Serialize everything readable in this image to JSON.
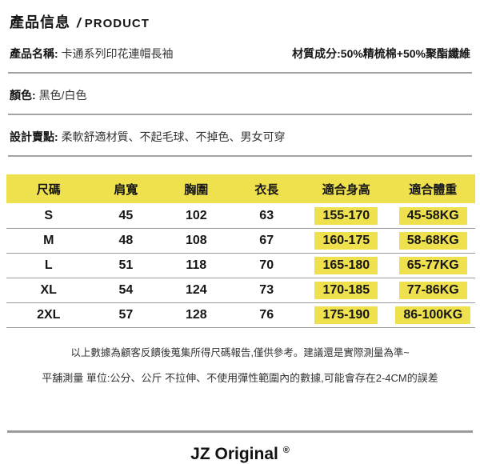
{
  "header": {
    "title_zh": "產品信息",
    "slash": "/",
    "title_en": "PRODUCT"
  },
  "info": {
    "name_label": "產品名稱:",
    "name_value": "卡通系列印花連帽長袖",
    "material_label": "材質成分:",
    "material_value": "50%精梳棉+50%聚酯纖維",
    "color_label": "顏色:",
    "color_value": "黑色/白色",
    "design_label": "設計賣點:",
    "design_value": "柔軟舒適材質、不起毛球、不掉色、男女可穿"
  },
  "size_table": {
    "columns": [
      "尺碼",
      "肩寬",
      "胸圍",
      "衣長",
      "適合身高",
      "適合體重"
    ],
    "rows": [
      [
        "S",
        "45",
        "102",
        "63",
        "155-170",
        "45-58KG"
      ],
      [
        "M",
        "48",
        "108",
        "67",
        "160-175",
        "58-68KG"
      ],
      [
        "L",
        "51",
        "118",
        "70",
        "165-180",
        "65-77KG"
      ],
      [
        "XL",
        "54",
        "124",
        "73",
        "170-185",
        "77-86KG"
      ],
      [
        "2XL",
        "57",
        "128",
        "76",
        "175-190",
        "86-100KG"
      ]
    ]
  },
  "notes": {
    "line1": "以上數據為顧客反饋後蒐集所得尺碼報告,僅供參考。建議還是實際測量為準~",
    "line2": "平舖測量 單位:公分、公斤 不拉伸、不使用彈性範圍內的數據,可能會存在2-4CM的誤差"
  },
  "footer": {
    "brand": "JZ Original",
    "registered": "®"
  },
  "colors": {
    "highlight_yellow": "#efe04e",
    "divider_gray": "#a3a3a3",
    "text_black": "#151515"
  }
}
